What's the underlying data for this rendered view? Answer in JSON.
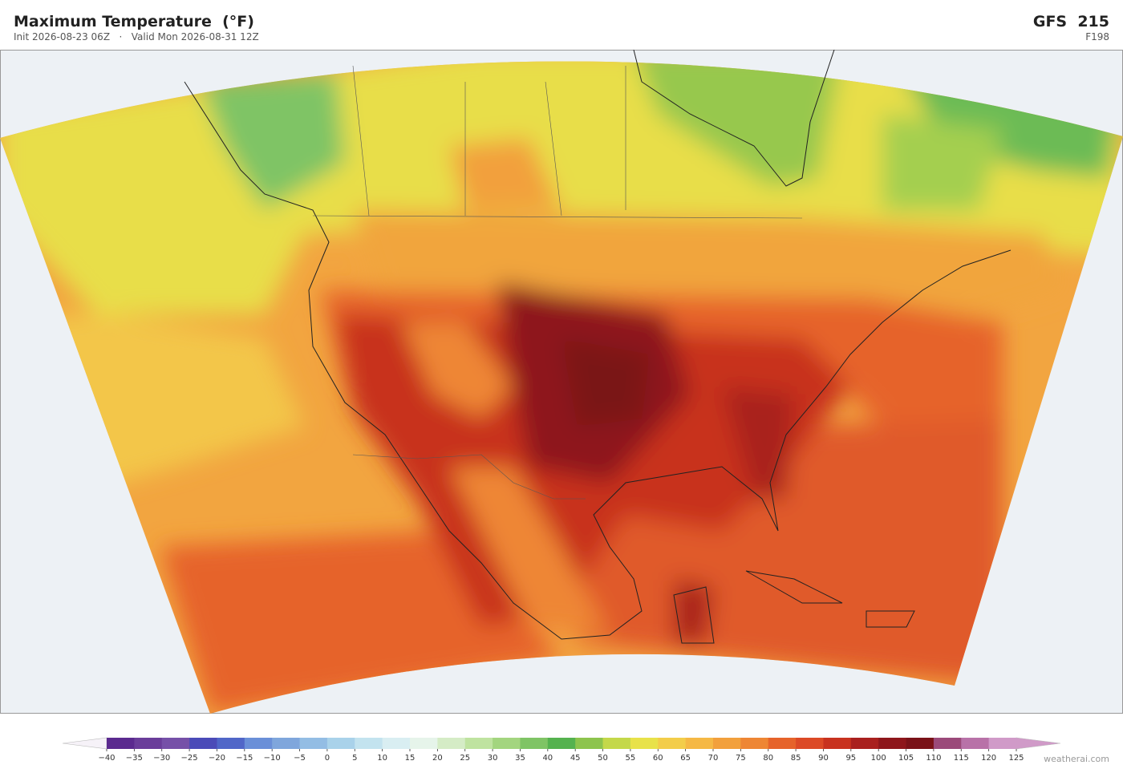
{
  "header": {
    "title": "Maximum Temperature  (°F)",
    "init": "Init 2026-08-23 06Z",
    "separator": "·",
    "valid": "Valid Mon 2026-08-31 12Z",
    "model": "GFS  215",
    "forecast_hour": "F198"
  },
  "colorbar": {
    "ticks": [
      {
        "value": -40,
        "label": "−40"
      },
      {
        "value": -35,
        "label": "−35"
      },
      {
        "value": -30,
        "label": "−30"
      },
      {
        "value": -25,
        "label": "−25"
      },
      {
        "value": -20,
        "label": "−20"
      },
      {
        "value": -15,
        "label": "−15"
      },
      {
        "value": -10,
        "label": "−10"
      },
      {
        "value": -5,
        "label": "−5"
      },
      0,
      5,
      10,
      15,
      20,
      25,
      30,
      35,
      40,
      45,
      50,
      55,
      60,
      65,
      70,
      75,
      80,
      85,
      90,
      95,
      100,
      105,
      110,
      115,
      120,
      125
    ],
    "colors": [
      "#5b2a8f",
      "#6a3d9a",
      "#7650a8",
      "#4b4bb8",
      "#5066c8",
      "#6a8fd8",
      "#7fa6dc",
      "#93bde4",
      "#a9d2ea",
      "#c3e3ef",
      "#d9eef2",
      "#e6f4ea",
      "#d5ecc6",
      "#bfe3a0",
      "#a3d57f",
      "#7fc465",
      "#55b24f",
      "#8dc44d",
      "#c4d84a",
      "#e8e24a",
      "#f3cd4a",
      "#f5b845",
      "#f2a03c",
      "#ee8634",
      "#e6632a",
      "#dc4a26",
      "#c8321f",
      "#a9201e",
      "#8e161b",
      "#7a1218",
      "#9b4a7a",
      "#b872a8",
      "#d09ac8"
    ]
  },
  "watermark": "weatherai.com"
}
